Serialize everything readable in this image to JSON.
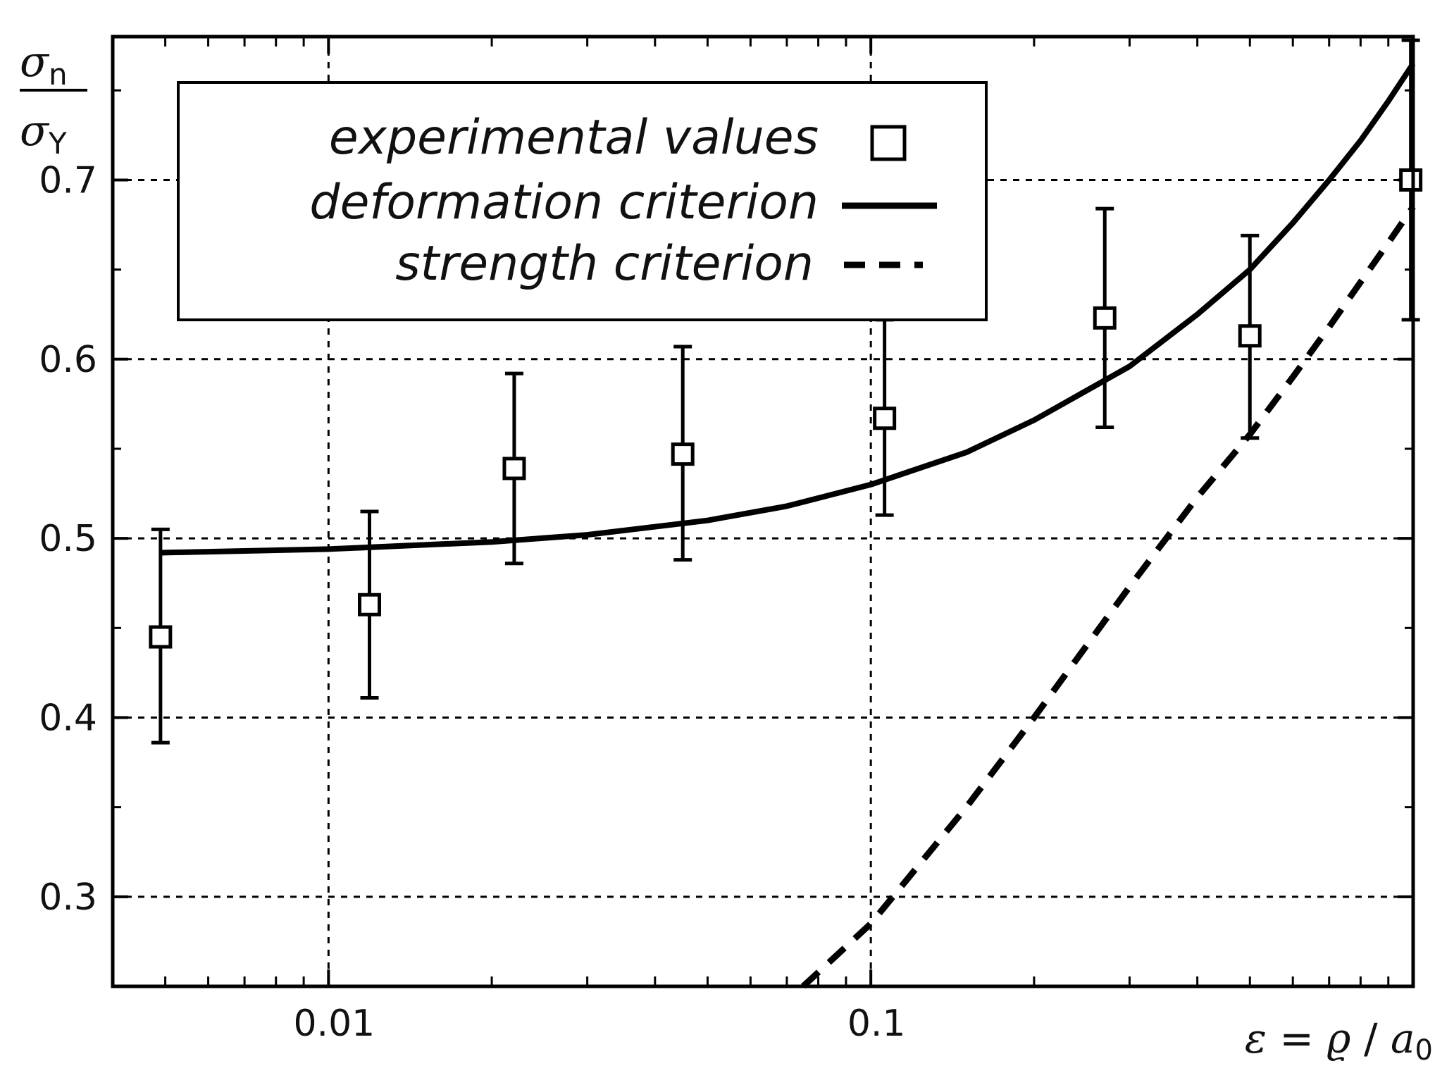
{
  "chart_data": {
    "type": "line",
    "title": "",
    "xlabel": {
      "var": "ε",
      "eq": " = ",
      "num": "ϱ",
      "slash": " / ",
      "den": "a",
      "den_sub": "0"
    },
    "ylabel": {
      "num": "σ",
      "num_sub": "n",
      "den": "σ",
      "den_sub": "Y"
    },
    "x_scale": "log",
    "xlim": [
      0.004,
      1.0
    ],
    "ylim": [
      0.25,
      0.78
    ],
    "x_ticks": [
      {
        "value": 0.01,
        "label": "0.01"
      },
      {
        "value": 0.1,
        "label": "0.1"
      }
    ],
    "y_ticks": [
      {
        "value": 0.3,
        "label": "0.3"
      },
      {
        "value": 0.4,
        "label": "0.4"
      },
      {
        "value": 0.5,
        "label": "0.5"
      },
      {
        "value": 0.6,
        "label": "0.6"
      },
      {
        "value": 0.7,
        "label": "0.7"
      }
    ],
    "grid": true,
    "legend_position": "top-left",
    "series": [
      {
        "name": "experimental values",
        "kind": "points_with_errorbars",
        "points": [
          {
            "x": 0.0049,
            "y": 0.445,
            "ylow": 0.386,
            "yhigh": 0.505
          },
          {
            "x": 0.0119,
            "y": 0.463,
            "ylow": 0.411,
            "yhigh": 0.515
          },
          {
            "x": 0.022,
            "y": 0.539,
            "ylow": 0.486,
            "yhigh": 0.592
          },
          {
            "x": 0.045,
            "y": 0.547,
            "ylow": 0.488,
            "yhigh": 0.607
          },
          {
            "x": 0.106,
            "y": 0.567,
            "ylow": 0.513,
            "yhigh": 0.622
          },
          {
            "x": 0.27,
            "y": 0.623,
            "ylow": 0.562,
            "yhigh": 0.684
          },
          {
            "x": 0.5,
            "y": 0.613,
            "ylow": 0.556,
            "yhigh": 0.669
          },
          {
            "x": 0.99,
            "y": 0.7,
            "ylow": 0.622,
            "yhigh": 0.778
          }
        ]
      },
      {
        "name": "deformation criterion",
        "kind": "solid_line",
        "points": [
          {
            "x": 0.0049,
            "y": 0.492
          },
          {
            "x": 0.01,
            "y": 0.494
          },
          {
            "x": 0.02,
            "y": 0.498
          },
          {
            "x": 0.03,
            "y": 0.502
          },
          {
            "x": 0.05,
            "y": 0.51
          },
          {
            "x": 0.07,
            "y": 0.518
          },
          {
            "x": 0.1,
            "y": 0.53
          },
          {
            "x": 0.15,
            "y": 0.548
          },
          {
            "x": 0.2,
            "y": 0.566
          },
          {
            "x": 0.3,
            "y": 0.596
          },
          {
            "x": 0.4,
            "y": 0.625
          },
          {
            "x": 0.5,
            "y": 0.65
          },
          {
            "x": 0.6,
            "y": 0.676
          },
          {
            "x": 0.7,
            "y": 0.7
          },
          {
            "x": 0.8,
            "y": 0.722
          },
          {
            "x": 0.9,
            "y": 0.744
          },
          {
            "x": 1.0,
            "y": 0.765
          }
        ]
      },
      {
        "name": "strength criterion",
        "kind": "dashed_line",
        "points": [
          {
            "x": 0.075,
            "y": 0.25
          },
          {
            "x": 0.1,
            "y": 0.285
          },
          {
            "x": 0.15,
            "y": 0.35
          },
          {
            "x": 0.2,
            "y": 0.4
          },
          {
            "x": 0.3,
            "y": 0.473
          },
          {
            "x": 0.4,
            "y": 0.523
          },
          {
            "x": 0.5,
            "y": 0.558
          },
          {
            "x": 0.6,
            "y": 0.59
          },
          {
            "x": 0.7,
            "y": 0.618
          },
          {
            "x": 0.8,
            "y": 0.643
          },
          {
            "x": 0.9,
            "y": 0.665
          },
          {
            "x": 1.0,
            "y": 0.685
          }
        ]
      }
    ]
  },
  "colors": {
    "ink": "#000000",
    "background": "#ffffff"
  }
}
